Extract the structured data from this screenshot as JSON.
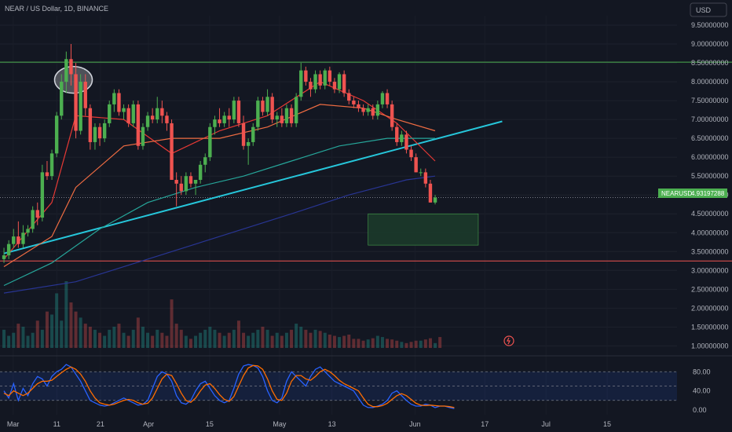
{
  "header": {
    "title": "NEAR / US Dollar, 1D, BINANCE"
  },
  "currency_button": {
    "label": "USD"
  },
  "price_tag": {
    "symbol": "NEARUSD",
    "value": "4.93197288"
  },
  "colors": {
    "background": "#131722",
    "up": "#26a69a",
    "candle_up": "#4caf50",
    "candle_down": "#ef5350",
    "resistance": "#4caf50",
    "support": "#ef5350",
    "trendline": "#26c6da",
    "ma_fast": "#e53935",
    "ma_mid": "#ef6c42",
    "ma_slow": "#26a69a",
    "ma_long": "#283593",
    "stoch_k": "#2962ff",
    "stoch_d": "#ff6d00",
    "target_box": "#1b3a2a"
  },
  "chart_data": [
    {
      "type": "candlestick",
      "title": "NEAR / US Dollar, 1D, BINANCE",
      "ylim": [
        0.8,
        9.75
      ],
      "y_ticks": [
        {
          "v": 9.5,
          "label": "9.50000000"
        },
        {
          "v": 9.0,
          "label": "9.00000000"
        },
        {
          "v": 8.5,
          "label": "8.50000000"
        },
        {
          "v": 8.0,
          "label": "8.00000000"
        },
        {
          "v": 7.5,
          "label": "7.50000000"
        },
        {
          "v": 7.0,
          "label": "7.00000000"
        },
        {
          "v": 6.5,
          "label": "6.50000000"
        },
        {
          "v": 6.0,
          "label": "6.00000000"
        },
        {
          "v": 5.5,
          "label": "5.50000000"
        },
        {
          "v": 5.0,
          "label": "5.00000000"
        },
        {
          "v": 4.5,
          "label": "4.50000000"
        },
        {
          "v": 4.0,
          "label": "4.00000000"
        },
        {
          "v": 3.5,
          "label": "3.50000000"
        },
        {
          "v": 3.0,
          "label": "3.00000000"
        },
        {
          "v": 2.5,
          "label": "2.50000000"
        },
        {
          "v": 2.0,
          "label": "2.00000000"
        },
        {
          "v": 1.5,
          "label": "1.50000000"
        },
        {
          "v": 1.0,
          "label": "1.00000000"
        }
      ],
      "x_ticks": [
        "Mar",
        "11",
        "21",
        "Apr",
        "15",
        "May",
        "13",
        "Jun",
        "17",
        "Jul",
        "15"
      ],
      "x_range": [
        "2024-02-27",
        "2024-07-31"
      ],
      "x_tick_dates": [
        "2024-03-01",
        "2024-03-11",
        "2024-03-21",
        "2024-04-01",
        "2024-04-15",
        "2024-05-01",
        "2024-05-13",
        "2024-06-01",
        "2024-06-17",
        "2024-07-01",
        "2024-07-15"
      ],
      "candles": [
        [
          3.3,
          3.6,
          3.2,
          3.4
        ],
        [
          3.4,
          3.8,
          3.3,
          3.7
        ],
        [
          3.7,
          4.1,
          3.6,
          3.9
        ],
        [
          3.9,
          4.3,
          3.6,
          3.7
        ],
        [
          3.7,
          4.2,
          3.6,
          4.0
        ],
        [
          4.0,
          4.2,
          3.9,
          4.1
        ],
        [
          4.1,
          4.7,
          4.0,
          4.6
        ],
        [
          4.6,
          4.8,
          4.2,
          4.4
        ],
        [
          4.4,
          5.8,
          4.3,
          5.6
        ],
        [
          5.6,
          5.9,
          5.4,
          5.5
        ],
        [
          5.5,
          6.2,
          5.4,
          6.1
        ],
        [
          6.1,
          7.2,
          6.0,
          7.1
        ],
        [
          7.1,
          8.2,
          7.0,
          8.0
        ],
        [
          8.0,
          8.8,
          7.7,
          8.6
        ],
        [
          8.6,
          9.0,
          7.9,
          8.2
        ],
        [
          8.2,
          8.5,
          6.5,
          6.7
        ],
        [
          6.7,
          8.2,
          6.6,
          8.0
        ],
        [
          8.0,
          8.2,
          7.1,
          7.3
        ],
        [
          7.3,
          7.4,
          6.2,
          6.4
        ],
        [
          6.4,
          6.9,
          6.2,
          6.8
        ],
        [
          6.8,
          6.9,
          6.3,
          6.5
        ],
        [
          6.5,
          7.0,
          6.4,
          6.9
        ],
        [
          6.9,
          7.5,
          6.8,
          7.4
        ],
        [
          7.4,
          7.8,
          7.2,
          7.7
        ],
        [
          7.7,
          7.8,
          7.1,
          7.2
        ],
        [
          7.2,
          7.4,
          7.0,
          7.3
        ],
        [
          7.3,
          7.4,
          6.8,
          6.9
        ],
        [
          6.9,
          7.5,
          6.8,
          7.4
        ],
        [
          7.4,
          7.5,
          6.2,
          6.3
        ],
        [
          6.3,
          6.9,
          6.2,
          6.8
        ],
        [
          6.8,
          7.2,
          6.7,
          7.1
        ],
        [
          7.1,
          7.3,
          6.9,
          7.0
        ],
        [
          7.0,
          7.6,
          6.9,
          7.3
        ],
        [
          7.3,
          7.5,
          6.9,
          7.1
        ],
        [
          7.1,
          7.2,
          6.7,
          6.9
        ],
        [
          6.9,
          7.0,
          5.4,
          5.4
        ],
        [
          5.4,
          5.6,
          4.7,
          5.3
        ],
        [
          5.3,
          5.5,
          5.0,
          5.1
        ],
        [
          5.1,
          5.6,
          5.0,
          5.5
        ],
        [
          5.5,
          5.6,
          5.2,
          5.3
        ],
        [
          5.3,
          5.4,
          5.0,
          5.4
        ],
        [
          5.4,
          5.9,
          5.3,
          5.8
        ],
        [
          5.8,
          6.1,
          5.6,
          6.0
        ],
        [
          6.0,
          6.9,
          5.9,
          6.8
        ],
        [
          6.8,
          7.1,
          6.6,
          7.0
        ],
        [
          7.0,
          7.3,
          6.8,
          6.9
        ],
        [
          6.9,
          7.2,
          6.8,
          7.1
        ],
        [
          7.1,
          7.3,
          6.8,
          7.0
        ],
        [
          7.0,
          7.6,
          6.9,
          7.5
        ],
        [
          7.5,
          7.6,
          6.8,
          6.9
        ],
        [
          6.9,
          7.1,
          6.2,
          6.3
        ],
        [
          6.3,
          6.5,
          5.8,
          6.4
        ],
        [
          6.4,
          6.9,
          6.3,
          6.8
        ],
        [
          6.8,
          7.6,
          6.7,
          7.5
        ],
        [
          7.5,
          7.6,
          7.1,
          7.2
        ],
        [
          7.2,
          7.8,
          7.1,
          7.6
        ],
        [
          7.6,
          7.7,
          6.9,
          7.0
        ],
        [
          7.0,
          7.2,
          6.8,
          7.1
        ],
        [
          7.1,
          7.3,
          6.8,
          6.9
        ],
        [
          6.9,
          7.4,
          6.8,
          7.3
        ],
        [
          7.3,
          7.4,
          6.8,
          6.9
        ],
        [
          6.9,
          7.7,
          6.8,
          7.6
        ],
        [
          7.6,
          8.5,
          7.5,
          8.3
        ],
        [
          8.3,
          8.4,
          7.9,
          8.0
        ],
        [
          8.0,
          8.1,
          7.6,
          7.8
        ],
        [
          7.8,
          8.3,
          7.7,
          8.2
        ],
        [
          8.2,
          8.3,
          7.8,
          7.9
        ],
        [
          7.9,
          8.35,
          7.8,
          8.3
        ],
        [
          8.3,
          8.4,
          7.9,
          8.0
        ],
        [
          8.0,
          8.1,
          7.7,
          7.8
        ],
        [
          7.8,
          8.25,
          7.7,
          8.2
        ],
        [
          8.2,
          8.3,
          7.6,
          7.7
        ],
        [
          7.7,
          7.8,
          7.4,
          7.5
        ],
        [
          7.5,
          7.6,
          7.3,
          7.4
        ],
        [
          7.4,
          7.5,
          7.2,
          7.3
        ],
        [
          7.3,
          7.4,
          7.1,
          7.2
        ],
        [
          7.2,
          7.4,
          7.1,
          7.3
        ],
        [
          7.3,
          7.4,
          7.0,
          7.1
        ],
        [
          7.1,
          7.5,
          7.0,
          7.4
        ],
        [
          7.4,
          7.75,
          7.3,
          7.7
        ],
        [
          7.7,
          7.8,
          7.3,
          7.4
        ],
        [
          7.4,
          7.5,
          6.7,
          6.8
        ],
        [
          6.8,
          6.9,
          6.3,
          6.4
        ],
        [
          6.4,
          6.7,
          6.3,
          6.6
        ],
        [
          6.6,
          6.7,
          6.1,
          6.2
        ],
        [
          6.2,
          6.3,
          5.9,
          6.0
        ],
        [
          6.0,
          6.1,
          5.6,
          5.6
        ],
        [
          5.6,
          5.7,
          5.5,
          5.6
        ],
        [
          5.6,
          5.7,
          5.2,
          5.3
        ],
        [
          5.3,
          5.4,
          4.8,
          4.8
        ],
        [
          4.8,
          5.0,
          4.75,
          4.93
        ]
      ],
      "overlays": {
        "resistance_level": 8.52,
        "support_level": 3.25,
        "current_price": 4.93197288,
        "trendline": {
          "from": [
            0,
            3.45
          ],
          "to": [
            104,
            6.95
          ]
        },
        "target_zone": {
          "x_from": 76,
          "x_to": 99,
          "y_from": 3.67,
          "y_to": 4.5
        },
        "highlight_circle": {
          "x": 14.5,
          "y": 8.05
        },
        "moving_averages": [
          {
            "color_key": "ma_fast",
            "values": [
              [
                0,
                3.3
              ],
              [
                10,
                4.8
              ],
              [
                15,
                7.1
              ],
              [
                25,
                7.0
              ],
              [
                35,
                6.1
              ],
              [
                45,
                6.7
              ],
              [
                55,
                7.1
              ],
              [
                66,
                8.0
              ],
              [
                75,
                7.5
              ],
              [
                82,
                6.9
              ],
              [
                90,
                5.9
              ]
            ]
          },
          {
            "color_key": "ma_mid",
            "values": [
              [
                0,
                3.1
              ],
              [
                10,
                3.9
              ],
              [
                15,
                5.2
              ],
              [
                25,
                6.3
              ],
              [
                35,
                6.5
              ],
              [
                45,
                6.5
              ],
              [
                55,
                6.8
              ],
              [
                66,
                7.4
              ],
              [
                75,
                7.3
              ],
              [
                82,
                7.0
              ],
              [
                90,
                6.7
              ]
            ]
          },
          {
            "color_key": "ma_slow",
            "values": [
              [
                0,
                2.6
              ],
              [
                10,
                3.2
              ],
              [
                20,
                4.1
              ],
              [
                30,
                4.8
              ],
              [
                40,
                5.2
              ],
              [
                50,
                5.5
              ],
              [
                60,
                5.9
              ],
              [
                70,
                6.3
              ],
              [
                80,
                6.5
              ],
              [
                90,
                6.5
              ]
            ]
          },
          {
            "color_key": "ma_long",
            "values": [
              [
                0,
                2.4
              ],
              [
                15,
                2.7
              ],
              [
                30,
                3.3
              ],
              [
                45,
                3.9
              ],
              [
                60,
                4.5
              ],
              [
                72,
                5.0
              ],
              [
                84,
                5.4
              ],
              [
                90,
                5.5
              ]
            ]
          }
        ]
      }
    },
    {
      "type": "line",
      "title": "",
      "ylim": [
        -10,
        110
      ],
      "y_ticks": [
        {
          "v": 80,
          "label": "80.00"
        },
        {
          "v": 40,
          "label": "40.00"
        },
        {
          "v": 0,
          "label": "0.00"
        }
      ],
      "band": [
        20,
        80
      ],
      "series": [
        {
          "color_key": "stoch_k",
          "values": [
            40,
            25,
            55,
            20,
            45,
            30,
            55,
            70,
            65,
            50,
            70,
            80,
            85,
            95,
            90,
            75,
            60,
            40,
            20,
            15,
            10,
            8,
            10,
            15,
            20,
            25,
            20,
            15,
            10,
            12,
            20,
            45,
            70,
            80,
            75,
            60,
            30,
            15,
            12,
            20,
            40,
            55,
            60,
            45,
            30,
            20,
            15,
            20,
            45,
            75,
            92,
            95,
            93,
            88,
            70,
            40,
            20,
            15,
            25,
            60,
            80,
            70,
            60,
            50,
            70,
            85,
            90,
            80,
            70,
            60,
            55,
            50,
            45,
            40,
            25,
            10,
            5,
            5,
            8,
            12,
            20,
            35,
            40,
            30,
            20,
            12,
            8,
            8,
            12,
            10,
            5,
            8,
            8,
            5,
            3
          ]
        },
        {
          "color_key": "stoch_d",
          "values": [
            35,
            30,
            40,
            35,
            30,
            35,
            45,
            55,
            60,
            60,
            62,
            70,
            78,
            85,
            90,
            85,
            75,
            60,
            40,
            25,
            15,
            12,
            10,
            12,
            16,
            20,
            22,
            20,
            15,
            12,
            14,
            25,
            45,
            65,
            75,
            72,
            55,
            35,
            20,
            16,
            25,
            40,
            52,
            55,
            45,
            32,
            22,
            18,
            28,
            50,
            72,
            88,
            93,
            92,
            85,
            65,
            40,
            22,
            20,
            35,
            60,
            72,
            72,
            65,
            62,
            70,
            80,
            85,
            80,
            72,
            62,
            55,
            50,
            45,
            40,
            25,
            12,
            7,
            7,
            9,
            14,
            22,
            30,
            34,
            30,
            22,
            14,
            10,
            9,
            10,
            9,
            8,
            8,
            7,
            5
          ]
        }
      ]
    },
    {
      "type": "bar",
      "title": "",
      "values": [
        30,
        20,
        25,
        40,
        35,
        20,
        25,
        45,
        30,
        60,
        55,
        90,
        45,
        110,
        75,
        60,
        50,
        40,
        35,
        30,
        25,
        20,
        30,
        35,
        40,
        25,
        20,
        30,
        50,
        35,
        25,
        20,
        30,
        25,
        20,
        80,
        40,
        30,
        20,
        15,
        20,
        25,
        30,
        35,
        30,
        25,
        20,
        25,
        30,
        45,
        25,
        20,
        25,
        30,
        35,
        30,
        20,
        25,
        20,
        25,
        30,
        40,
        35,
        30,
        25,
        30,
        28,
        25,
        22,
        20,
        18,
        20,
        22,
        15,
        15,
        12,
        14,
        16,
        20,
        18,
        15,
        14,
        12,
        10,
        8,
        10,
        12,
        12,
        14,
        16,
        8,
        18
      ]
    }
  ]
}
